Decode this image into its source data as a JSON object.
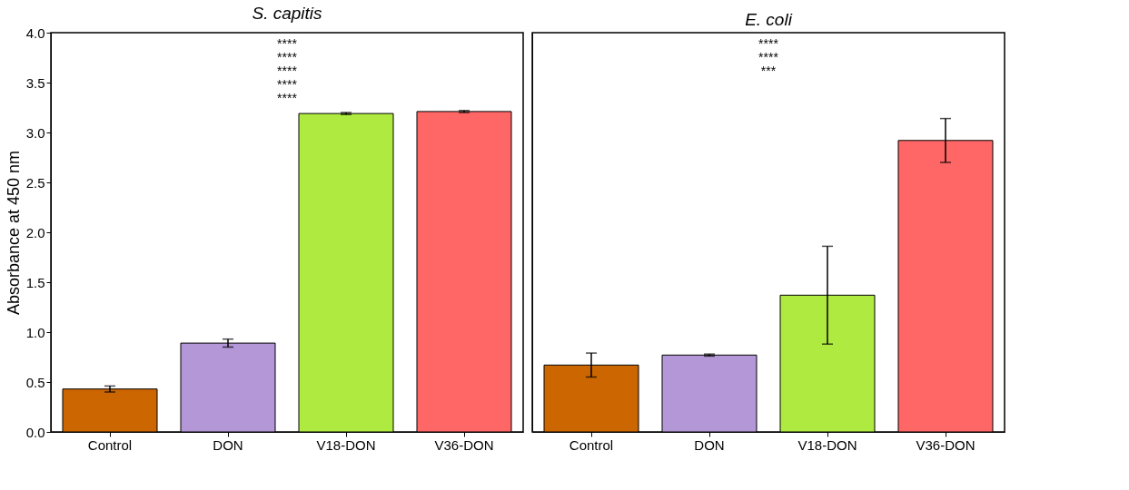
{
  "chart_data": [
    {
      "type": "bar",
      "title": "S. capitis",
      "ylabel": "Absorbance at 450 nm",
      "categories": [
        "Control",
        "DON",
        "V18-DON",
        "V36-DON"
      ],
      "values": [
        0.43,
        0.89,
        3.19,
        3.21
      ],
      "errors": [
        0.03,
        0.04,
        0.01,
        0.01
      ],
      "colors": [
        "#cc6600",
        "#b497d6",
        "#aeea40",
        "#ff6666"
      ],
      "ylim": [
        0,
        4.0
      ],
      "yticks": [
        {
          "value": 0,
          "label": "0.0"
        },
        0.5,
        {
          "value": 1,
          "label": "1.0"
        },
        1.5,
        {
          "value": 2,
          "label": "2.0"
        },
        2.5,
        {
          "value": 3,
          "label": "3.0"
        },
        3.5,
        {
          "value": 4,
          "label": "4.0"
        }
      ],
      "grid": false,
      "legend": false,
      "annotations": [
        "****",
        "****",
        "****",
        "****",
        "****"
      ]
    },
    {
      "type": "bar",
      "title": "E. coli",
      "categories": [
        "Control",
        "DON",
        "V18-DON",
        "V36-DON"
      ],
      "values": [
        0.67,
        0.77,
        1.37,
        2.92
      ],
      "errors": [
        0.12,
        0.01,
        0.49,
        0.22
      ],
      "colors": [
        "#cc6600",
        "#b497d6",
        "#aeea40",
        "#ff6666"
      ],
      "ylim": [
        0,
        4.0
      ],
      "tick_labels": "x",
      "grid": false,
      "legend": false,
      "annotations": [
        "****",
        "****",
        "***"
      ]
    }
  ]
}
